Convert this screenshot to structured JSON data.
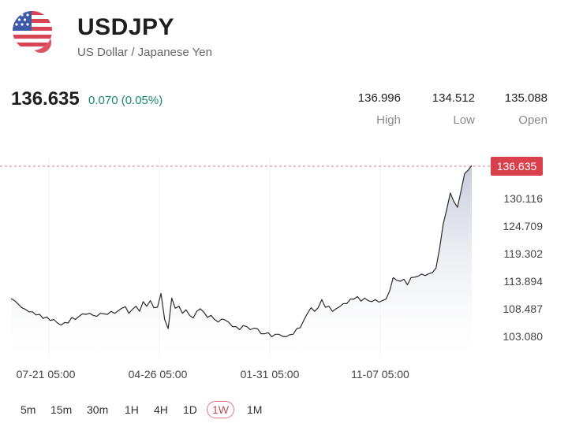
{
  "header": {
    "symbol": "USDJPY",
    "pair_name": "US Dollar / Japanese Yen",
    "flag_icon": "us-flag-icon"
  },
  "quote": {
    "last": "136.635",
    "change": "0.070 (0.05%)",
    "high_value": "136.996",
    "high_label": "High",
    "low_value": "134.512",
    "low_label": "Low",
    "open_value": "135.088",
    "open_label": "Open"
  },
  "colors": {
    "up": "#1a8a6e",
    "price_tag": "#d9404c",
    "line": "#2b2b2b",
    "area_top": "#c3c9d9",
    "grid": "#f0f0f2"
  },
  "chart_data": {
    "type": "area",
    "current_price_label": "136.635",
    "current_price": 136.635,
    "y_ticks": [
      130.116,
      124.709,
      119.302,
      113.894,
      108.487,
      103.08
    ],
    "y_tick_labels": [
      "130.116",
      "124.709",
      "119.302",
      "113.894",
      "108.487",
      "103.080"
    ],
    "x_tick_labels": [
      "07-21 05:00",
      "04-26 05:00",
      "01-31 05:00",
      "11-07 05:00"
    ],
    "ylim": [
      100.5,
      142
    ],
    "series": [
      {
        "values": [
          110.5,
          110.1,
          109.4,
          108.7,
          108.4,
          107.9,
          107.9,
          107.3,
          107.4,
          106.6,
          106.9,
          106.2,
          106.4,
          105.7,
          105.3,
          105.8,
          105.7,
          106.8,
          106.4,
          107.0,
          107.5,
          107.4,
          107.6,
          107.2,
          107.0,
          107.6,
          107.5,
          107.4,
          108.0,
          107.6,
          108.1,
          108.6,
          108.9,
          107.6,
          108.4,
          109.0,
          108.0,
          109.9,
          109.0,
          110.1,
          108.7,
          108.8,
          111.5,
          106.4,
          104.6,
          110.6,
          108.6,
          109.0,
          107.6,
          108.3,
          107.2,
          106.7,
          108.0,
          108.5,
          107.8,
          106.8,
          107.2,
          106.4,
          105.9,
          106.5,
          106.3,
          105.8,
          105.0,
          105.0,
          104.4,
          105.2,
          105.0,
          104.4,
          104.7,
          104.6,
          103.6,
          103.6,
          103.8,
          103.0,
          103.5,
          103.5,
          103.1,
          103.0,
          103.4,
          103.5,
          104.6,
          104.8,
          106.3,
          107.6,
          108.7,
          108.0,
          108.7,
          110.3,
          108.8,
          109.0,
          108.0,
          108.5,
          108.9,
          109.5,
          109.5,
          110.4,
          110.4,
          110.9,
          110.0,
          110.6,
          110.1,
          109.9,
          110.3,
          109.8,
          110.1,
          110.4,
          112.0,
          114.6,
          114.1,
          113.9,
          114.3,
          113.2,
          114.6,
          114.7,
          114.9,
          115.3,
          115.0,
          115.4,
          115.6,
          116.5,
          120.4,
          125.1,
          128.0,
          131.2,
          129.5,
          128.4,
          131.6,
          135.0,
          135.7,
          136.6
        ]
      }
    ],
    "grid": true
  },
  "timeframes": [
    {
      "label": "5m"
    },
    {
      "label": "15m"
    },
    {
      "label": "30m"
    },
    {
      "label": "1H"
    },
    {
      "label": "4H"
    },
    {
      "label": "1D"
    },
    {
      "label": "1W"
    },
    {
      "label": "1M"
    }
  ],
  "active_timeframe": "1W"
}
